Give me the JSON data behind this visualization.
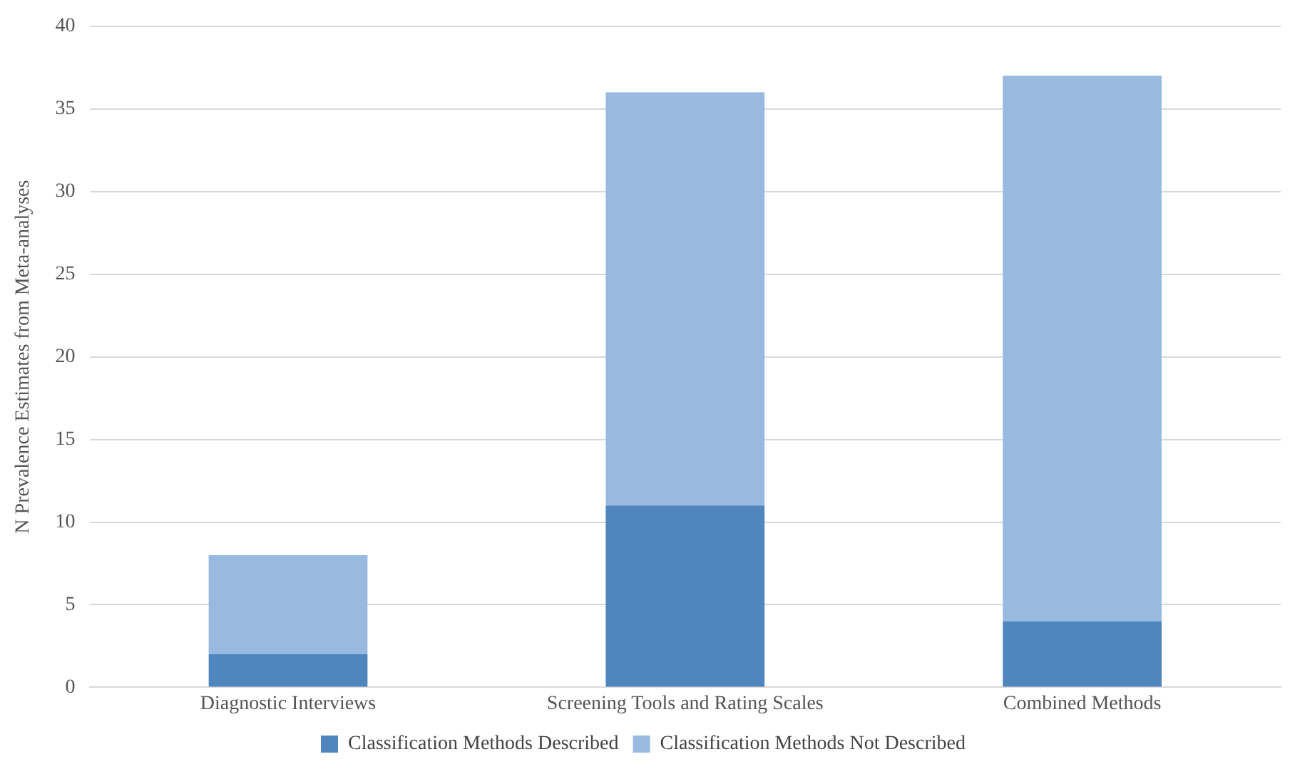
{
  "chart_data": {
    "type": "bar",
    "stacked": true,
    "ylabel": "N Prevalence Estimates from Meta-analyses",
    "categories": [
      "Diagnostic Interviews",
      "Screening Tools and Rating Scales",
      "Combined Methods"
    ],
    "series": [
      {
        "name": "Classification Methods Described",
        "color": "#4f86bd",
        "values": [
          2,
          11,
          4
        ]
      },
      {
        "name": "Classification Methods Not Described",
        "color": "#98b9e0",
        "values": [
          6,
          25,
          33
        ]
      }
    ],
    "ylim": [
      0,
      40
    ],
    "yticks": [
      0,
      5,
      10,
      15,
      20,
      25,
      30,
      35,
      40
    ],
    "grid": "y",
    "legend": "bottom"
  }
}
